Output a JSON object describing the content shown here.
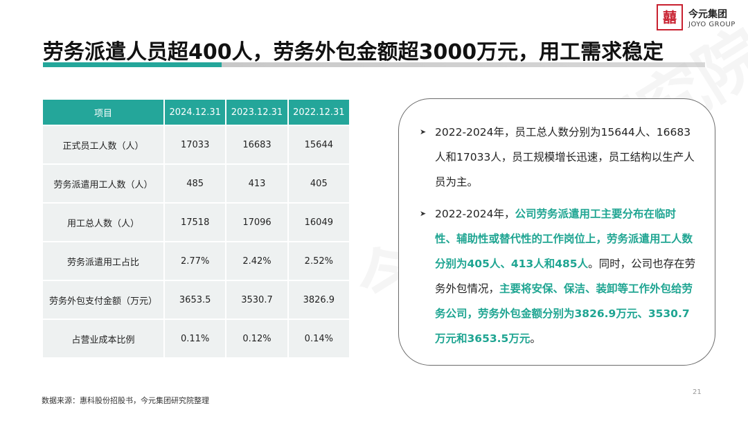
{
  "logo": {
    "name": "今元集团",
    "en": "JOYO GROUP"
  },
  "title": "劳务派遣人员超400人，劳务外包金额超3000万元，用工需求稳定",
  "watermark": "今元集团研究院",
  "table": {
    "headers": [
      "项目",
      "2024.12.31",
      "2023.12.31",
      "2022.12.31"
    ],
    "rows": [
      [
        "正式员工人数（人）",
        "17033",
        "16683",
        "15644"
      ],
      [
        "劳务派遣用工人数（人）",
        "485",
        "413",
        "405"
      ],
      [
        "用工总人数（人）",
        "17518",
        "17096",
        "16049"
      ],
      [
        "劳务派遣用工占比",
        "2.77%",
        "2.42%",
        "2.52%"
      ],
      [
        "劳务外包支付金额（万元）",
        "3653.5",
        "3530.7",
        "3826.9"
      ],
      [
        "占营业成本比例",
        "0.11%",
        "0.12%",
        "0.14%"
      ]
    ]
  },
  "panel": {
    "bullet1": "2022-2024年，员工总人数分别为15644人、16683人和17033人，员工规模增长迅速，员工结构以生产人员为主。",
    "bullet2": {
      "p1": "2022-2024年，",
      "p2": "公司劳务派遣用工主要分布在临时性、辅助性或替代性的工作岗位上，劳务派遣用工人数分别为405人、413人和485人",
      "p3": "。同时，公司也存在劳务外包情况，",
      "p4": "主要将安保、保洁、装卸等工作外包给劳务公司，劳务外包金额分别为3826.9万元、3530.7万元和3653.5万元",
      "p5": "。"
    }
  },
  "source": "数据来源：惠科股份招股书，今元集团研究院整理",
  "page_number": "21",
  "colors": {
    "accent": "#24a69a",
    "highlight": "#1fa592",
    "brand_red": "#c8202f"
  }
}
